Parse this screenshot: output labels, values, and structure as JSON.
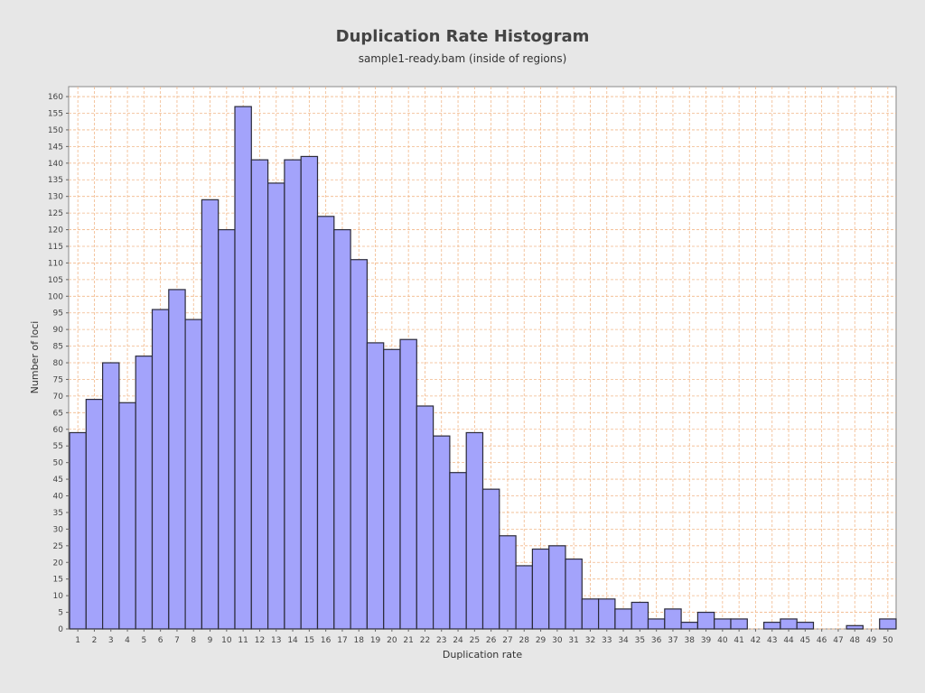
{
  "chart_data": {
    "type": "bar",
    "title": "Duplication Rate Histogram",
    "subtitle": "sample1-ready.bam (inside of regions)",
    "xlabel": "Duplication rate",
    "ylabel": "Number of loci",
    "categories": [
      "1",
      "2",
      "3",
      "4",
      "5",
      "6",
      "7",
      "8",
      "9",
      "10",
      "11",
      "12",
      "13",
      "14",
      "15",
      "16",
      "17",
      "18",
      "19",
      "20",
      "21",
      "22",
      "23",
      "24",
      "25",
      "26",
      "27",
      "28",
      "29",
      "30",
      "31",
      "32",
      "33",
      "34",
      "35",
      "36",
      "37",
      "38",
      "39",
      "40",
      "41",
      "42",
      "43",
      "44",
      "45",
      "46",
      "47",
      "48",
      "49",
      "50"
    ],
    "values": [
      59,
      69,
      80,
      68,
      82,
      96,
      102,
      93,
      129,
      120,
      157,
      141,
      134,
      141,
      142,
      124,
      120,
      111,
      86,
      84,
      87,
      67,
      58,
      47,
      59,
      42,
      28,
      19,
      24,
      25,
      21,
      9,
      9,
      6,
      8,
      3,
      6,
      2,
      5,
      3,
      3,
      0,
      2,
      3,
      2,
      0,
      0,
      1,
      0,
      3
    ],
    "ylim": [
      0,
      163
    ],
    "yticks": [
      0,
      5,
      10,
      15,
      20,
      25,
      30,
      35,
      40,
      45,
      50,
      55,
      60,
      65,
      70,
      75,
      80,
      85,
      90,
      95,
      100,
      105,
      110,
      115,
      120,
      125,
      130,
      135,
      140,
      145,
      150,
      155,
      160
    ],
    "grid": true,
    "colors": {
      "bar_fill": "#a3a3fb",
      "bar_stroke": "#2b2b3a",
      "grid": "#f2b88a",
      "background": "#e7e7e7",
      "plot_bg": "#ffffff"
    }
  }
}
